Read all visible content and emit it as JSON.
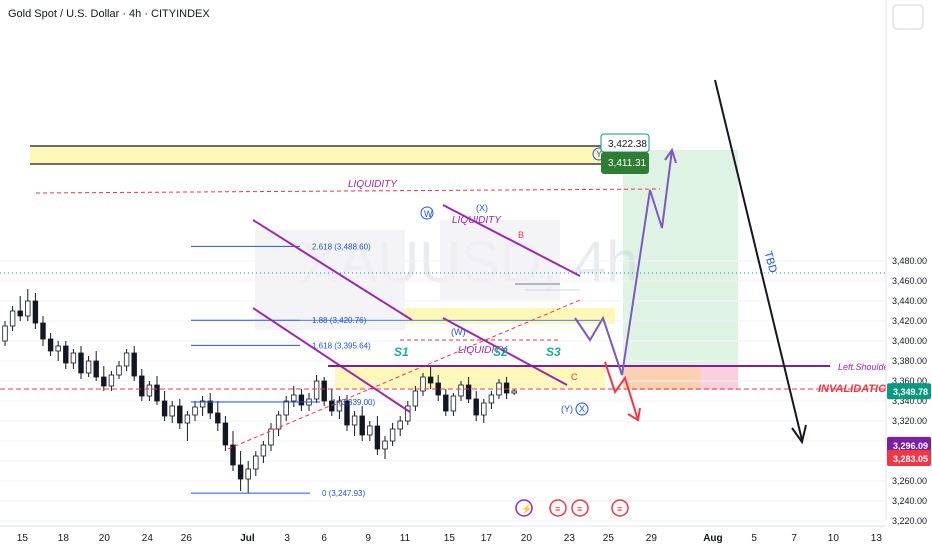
{
  "chart_data": {
    "type": "candlestick",
    "title": "Gold Spot / U.S. Dollar · 4h · CITYINDEX",
    "watermark": "XAUUSD, 4h",
    "currency": "USD",
    "ylim": [
      3205,
      3500
    ],
    "y_ticks": [
      3220,
      3240,
      3260,
      3280,
      3300,
      3320,
      3340,
      3360,
      3380,
      3400,
      3420,
      3440,
      3460,
      3480
    ],
    "y_tick_labels": [
      "3,220.00",
      "3,240.00",
      "3,260.00",
      "3,280.00",
      "3,300.00",
      "3,320.00",
      "3,340.00",
      "3,360.00",
      "3,380.00",
      "3,400.00",
      "3,420.00",
      "3,440.00",
      "3,460.00",
      "3,480.00"
    ],
    "x_tick_labels": [
      "15",
      "18",
      "20",
      "24",
      "26",
      "Jul",
      "3",
      "6",
      "9",
      "11",
      "15",
      "17",
      "20",
      "23",
      "25",
      "29",
      "Aug",
      "5",
      "7",
      "10",
      "13"
    ],
    "current_price": {
      "value": 3349.78,
      "label": "3,349.78",
      "color": "#089981"
    },
    "price_tags": [
      {
        "value": 3296.09,
        "label": "3,296.09",
        "color": "#7b1fa2"
      },
      {
        "value": 3283.05,
        "label": "3,283.05",
        "color": "#f23645"
      }
    ],
    "target_box": {
      "upper": "3,422.38",
      "lower": "3,411.31"
    },
    "fibonacci": [
      {
        "value": 3488.6,
        "label": "2.618 (3,488.60)"
      },
      {
        "value": 3420.76,
        "label": "1.88 (3,420.76)"
      },
      {
        "value": 3395.64,
        "label": "1.618 (3,395.64)"
      },
      {
        "value": 3339.0,
        "label": "1 (3,339.00)"
      },
      {
        "value": 3247.93,
        "label": "0 (3,247.93)"
      }
    ],
    "annotations": {
      "liquidity": "LIQUIDITY",
      "left_shoulder": "Left.Shoulder",
      "invalidation": "INVALIDATION",
      "tbd": "TBD",
      "wave_w": "W",
      "wave_x": "X",
      "wave_y": "Y",
      "paren_x": "(X)",
      "paren_w": "(W)",
      "paren_y": "(Y)",
      "b": "B",
      "c": "C",
      "s1": "S1",
      "s2": "S2",
      "s3": "S3"
    },
    "candles": [
      [
        3400,
        3420,
        3395,
        3415
      ],
      [
        3415,
        3435,
        3410,
        3430
      ],
      [
        3430,
        3445,
        3420,
        3425
      ],
      [
        3425,
        3452,
        3420,
        3440
      ],
      [
        3440,
        3448,
        3412,
        3418
      ],
      [
        3418,
        3425,
        3395,
        3402
      ],
      [
        3402,
        3408,
        3385,
        3390
      ],
      [
        3390,
        3400,
        3380,
        3395
      ],
      [
        3395,
        3400,
        3372,
        3378
      ],
      [
        3378,
        3392,
        3372,
        3388
      ],
      [
        3388,
        3395,
        3362,
        3368
      ],
      [
        3368,
        3385,
        3364,
        3380
      ],
      [
        3380,
        3390,
        3360,
        3364
      ],
      [
        3364,
        3375,
        3350,
        3355
      ],
      [
        3355,
        3370,
        3350,
        3366
      ],
      [
        3366,
        3380,
        3362,
        3375
      ],
      [
        3375,
        3392,
        3370,
        3388
      ],
      [
        3388,
        3395,
        3360,
        3365
      ],
      [
        3365,
        3372,
        3340,
        3345
      ],
      [
        3345,
        3360,
        3340,
        3356
      ],
      [
        3356,
        3365,
        3336,
        3340
      ],
      [
        3340,
        3350,
        3320,
        3325
      ],
      [
        3325,
        3340,
        3318,
        3335
      ],
      [
        3335,
        3342,
        3312,
        3318
      ],
      [
        3318,
        3330,
        3300,
        3326
      ],
      [
        3326,
        3340,
        3320,
        3334
      ],
      [
        3334,
        3345,
        3325,
        3340
      ],
      [
        3340,
        3348,
        3322,
        3328
      ],
      [
        3328,
        3340,
        3310,
        3318
      ],
      [
        3318,
        3325,
        3290,
        3296
      ],
      [
        3296,
        3310,
        3270,
        3276
      ],
      [
        3276,
        3290,
        3250,
        3262
      ],
      [
        3262,
        3280,
        3248,
        3272
      ],
      [
        3272,
        3290,
        3265,
        3285
      ],
      [
        3285,
        3300,
        3278,
        3296
      ],
      [
        3296,
        3318,
        3290,
        3312
      ],
      [
        3312,
        3330,
        3305,
        3326
      ],
      [
        3326,
        3345,
        3320,
        3340
      ],
      [
        3340,
        3355,
        3334,
        3346
      ],
      [
        3346,
        3352,
        3330,
        3336
      ],
      [
        3336,
        3348,
        3330,
        3342
      ],
      [
        3342,
        3366,
        3338,
        3360
      ],
      [
        3360,
        3364,
        3335,
        3340
      ],
      [
        3340,
        3352,
        3325,
        3330
      ],
      [
        3330,
        3345,
        3322,
        3340
      ],
      [
        3340,
        3346,
        3310,
        3316
      ],
      [
        3316,
        3330,
        3305,
        3325
      ],
      [
        3325,
        3335,
        3300,
        3306
      ],
      [
        3306,
        3320,
        3300,
        3315
      ],
      [
        3315,
        3325,
        3286,
        3292
      ],
      [
        3292,
        3305,
        3282,
        3300
      ],
      [
        3300,
        3318,
        3295,
        3312
      ],
      [
        3312,
        3325,
        3305,
        3320
      ],
      [
        3320,
        3340,
        3316,
        3335
      ],
      [
        3335,
        3355,
        3330,
        3350
      ],
      [
        3350,
        3368,
        3345,
        3364
      ],
      [
        3364,
        3374,
        3352,
        3358
      ],
      [
        3358,
        3366,
        3340,
        3346
      ],
      [
        3346,
        3352,
        3325,
        3330
      ],
      [
        3330,
        3348,
        3325,
        3345
      ],
      [
        3345,
        3360,
        3340,
        3356
      ],
      [
        3356,
        3364,
        3338,
        3342
      ],
      [
        3342,
        3350,
        3320,
        3326
      ],
      [
        3326,
        3342,
        3318,
        3338
      ],
      [
        3338,
        3350,
        3332,
        3346
      ],
      [
        3346,
        3362,
        3342,
        3358
      ],
      [
        3358,
        3364,
        3342,
        3348
      ],
      [
        3348,
        3352,
        3346,
        3350
      ]
    ]
  }
}
